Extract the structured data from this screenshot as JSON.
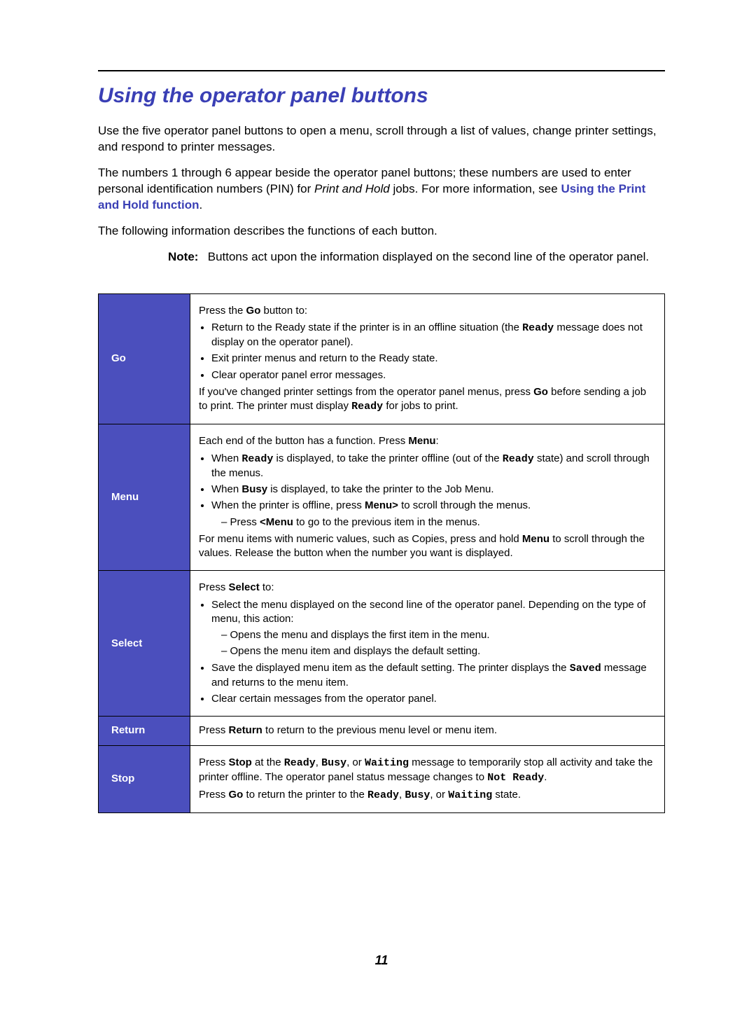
{
  "page": {
    "title": "Using the operator panel buttons",
    "intro1": "Use the five operator panel buttons to open a menu, scroll through a list of values, change printer settings, and respond to printer messages.",
    "intro2_prefix": "The numbers 1 through 6 appear beside the operator panel buttons; these numbers are used to enter personal identification numbers (PIN) for ",
    "intro2_italic": "Print and Hold",
    "intro2_mid": " jobs. For more information, see ",
    "intro2_link": "Using the Print and Hold function",
    "intro2_suffix": ".",
    "intro3": "The following information describes the functions of each button.",
    "note_label": "Note:",
    "note_text": "Buttons act upon the information displayed on the second line of the operator panel.",
    "page_number": "11"
  },
  "table": {
    "rows": [
      {
        "key": "Go"
      },
      {
        "key": "Menu"
      },
      {
        "key": "Select"
      },
      {
        "key": "Return"
      },
      {
        "key": "Stop"
      }
    ],
    "go": {
      "line1_pre": "Press the ",
      "line1_bold": "Go",
      "line1_post": " button to:",
      "b1_pre": "Return to the Ready state if the printer is in an offline situation (the ",
      "b1_mono": "Ready",
      "b1_post": " message does not display on the operator panel).",
      "b2": "Exit printer menus and return to the Ready state.",
      "b3": "Clear operator panel error messages.",
      "p2_pre": "If you've changed printer settings from the operator panel menus, press ",
      "p2_bold": "Go",
      "p2_mid": " before sending a job to print. The printer must display ",
      "p2_mono": "Ready",
      "p2_post": " for jobs to print."
    },
    "menu": {
      "line1_pre": "Each end of the button has a function. Press ",
      "line1_bold": "Menu",
      "line1_post": ":",
      "b1_pre": "When ",
      "b1_mono": "Ready",
      "b1_mid": " is displayed, to take the printer offline (out of the ",
      "b1_mono2": "Ready",
      "b1_post": " state) and scroll through the menus.",
      "b2_pre": "When ",
      "b2_bold": "Busy",
      "b2_post": " is displayed, to take the printer to the Job Menu.",
      "b3_pre": "When the printer is offline, press ",
      "b3_bold": "Menu>",
      "b3_post": " to scroll through the menus.",
      "b3s_pre": "Press ",
      "b3s_bold": "<Menu",
      "b3s_post": " to go to the previous item in the menus.",
      "p2_pre": "For menu items with numeric values, such as Copies, press and hold ",
      "p2_bold": "Menu",
      "p2_post": " to scroll through the values. Release the button when the number you want is displayed."
    },
    "select": {
      "line1_pre": "Press ",
      "line1_bold": "Select",
      "line1_post": " to:",
      "b1": "Select the menu displayed on the second line of the operator panel. Depending on the type of menu, this action:",
      "b1s1": "Opens the menu and displays the first item in the menu.",
      "b1s2": "Opens the menu item and displays the default setting.",
      "b2_pre": "Save the displayed menu item as the default setting. The printer displays the ",
      "b2_mono": "Saved",
      "b2_post": " message and returns to the menu item.",
      "b3": "Clear certain messages from the operator panel."
    },
    "return": {
      "pre": "Press ",
      "bold": "Return",
      "post": " to return to the previous menu level or menu item."
    },
    "stop": {
      "p1_pre": "Press ",
      "p1_bold": "Stop",
      "p1_mid": " at the ",
      "p1_m1": "Ready",
      "p1_c1": ", ",
      "p1_m2": "Busy",
      "p1_c2": ", or ",
      "p1_m3": "Waiting",
      "p1_mid2": " message to temporarily stop all activity and take the printer offline. The operator panel status message changes to ",
      "p1_m4": "Not Ready",
      "p1_end": ".",
      "p2_pre": "Press ",
      "p2_bold": "Go",
      "p2_mid": " to return the printer to the ",
      "p2_m1": "Ready",
      "p2_c1": ", ",
      "p2_m2": "Busy",
      "p2_c2": ", or ",
      "p2_m3": "Waiting",
      "p2_post": " state."
    }
  },
  "colors": {
    "accent": "#3a3fb5",
    "table_header_bg": "#4b4fbd",
    "text": "#000000",
    "background": "#ffffff"
  }
}
